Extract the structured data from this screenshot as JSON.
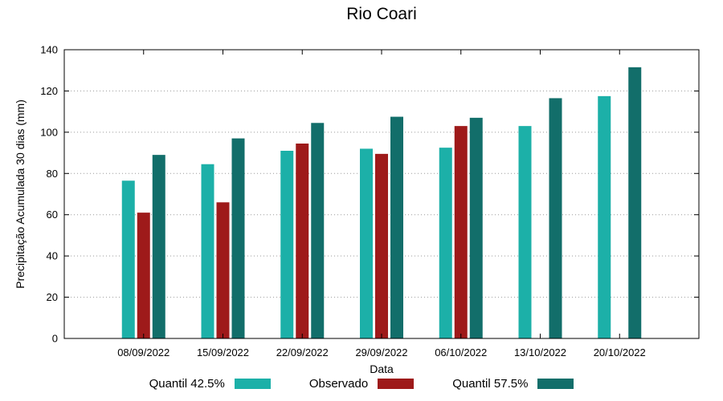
{
  "chart_data": {
    "type": "bar",
    "title": "Rio Coari",
    "xlabel": "Data",
    "ylabel": "Precipitação Acumulada 30 dias (mm)",
    "ylim": [
      0,
      140
    ],
    "ytick_step": 20,
    "grid": true,
    "grid_style": "dotted",
    "legend_position": "bottom",
    "categories": [
      "08/09/2022",
      "15/09/2022",
      "22/09/2022",
      "29/09/2022",
      "06/10/2022",
      "13/10/2022",
      "20/10/2022"
    ],
    "series": [
      {
        "name": "Quantil 42.5%",
        "color": "#1CB0A8",
        "values": [
          76.5,
          84.5,
          91,
          92,
          92.5,
          103,
          117.5
        ]
      },
      {
        "name": "Observado",
        "color": "#9E1A1A",
        "values": [
          61,
          66,
          94.5,
          89.5,
          103,
          null,
          null
        ]
      },
      {
        "name": "Quantil 57.5%",
        "color": "#126E6A",
        "values": [
          89,
          97,
          104.5,
          107.5,
          107,
          116.5,
          131.5
        ]
      }
    ]
  }
}
